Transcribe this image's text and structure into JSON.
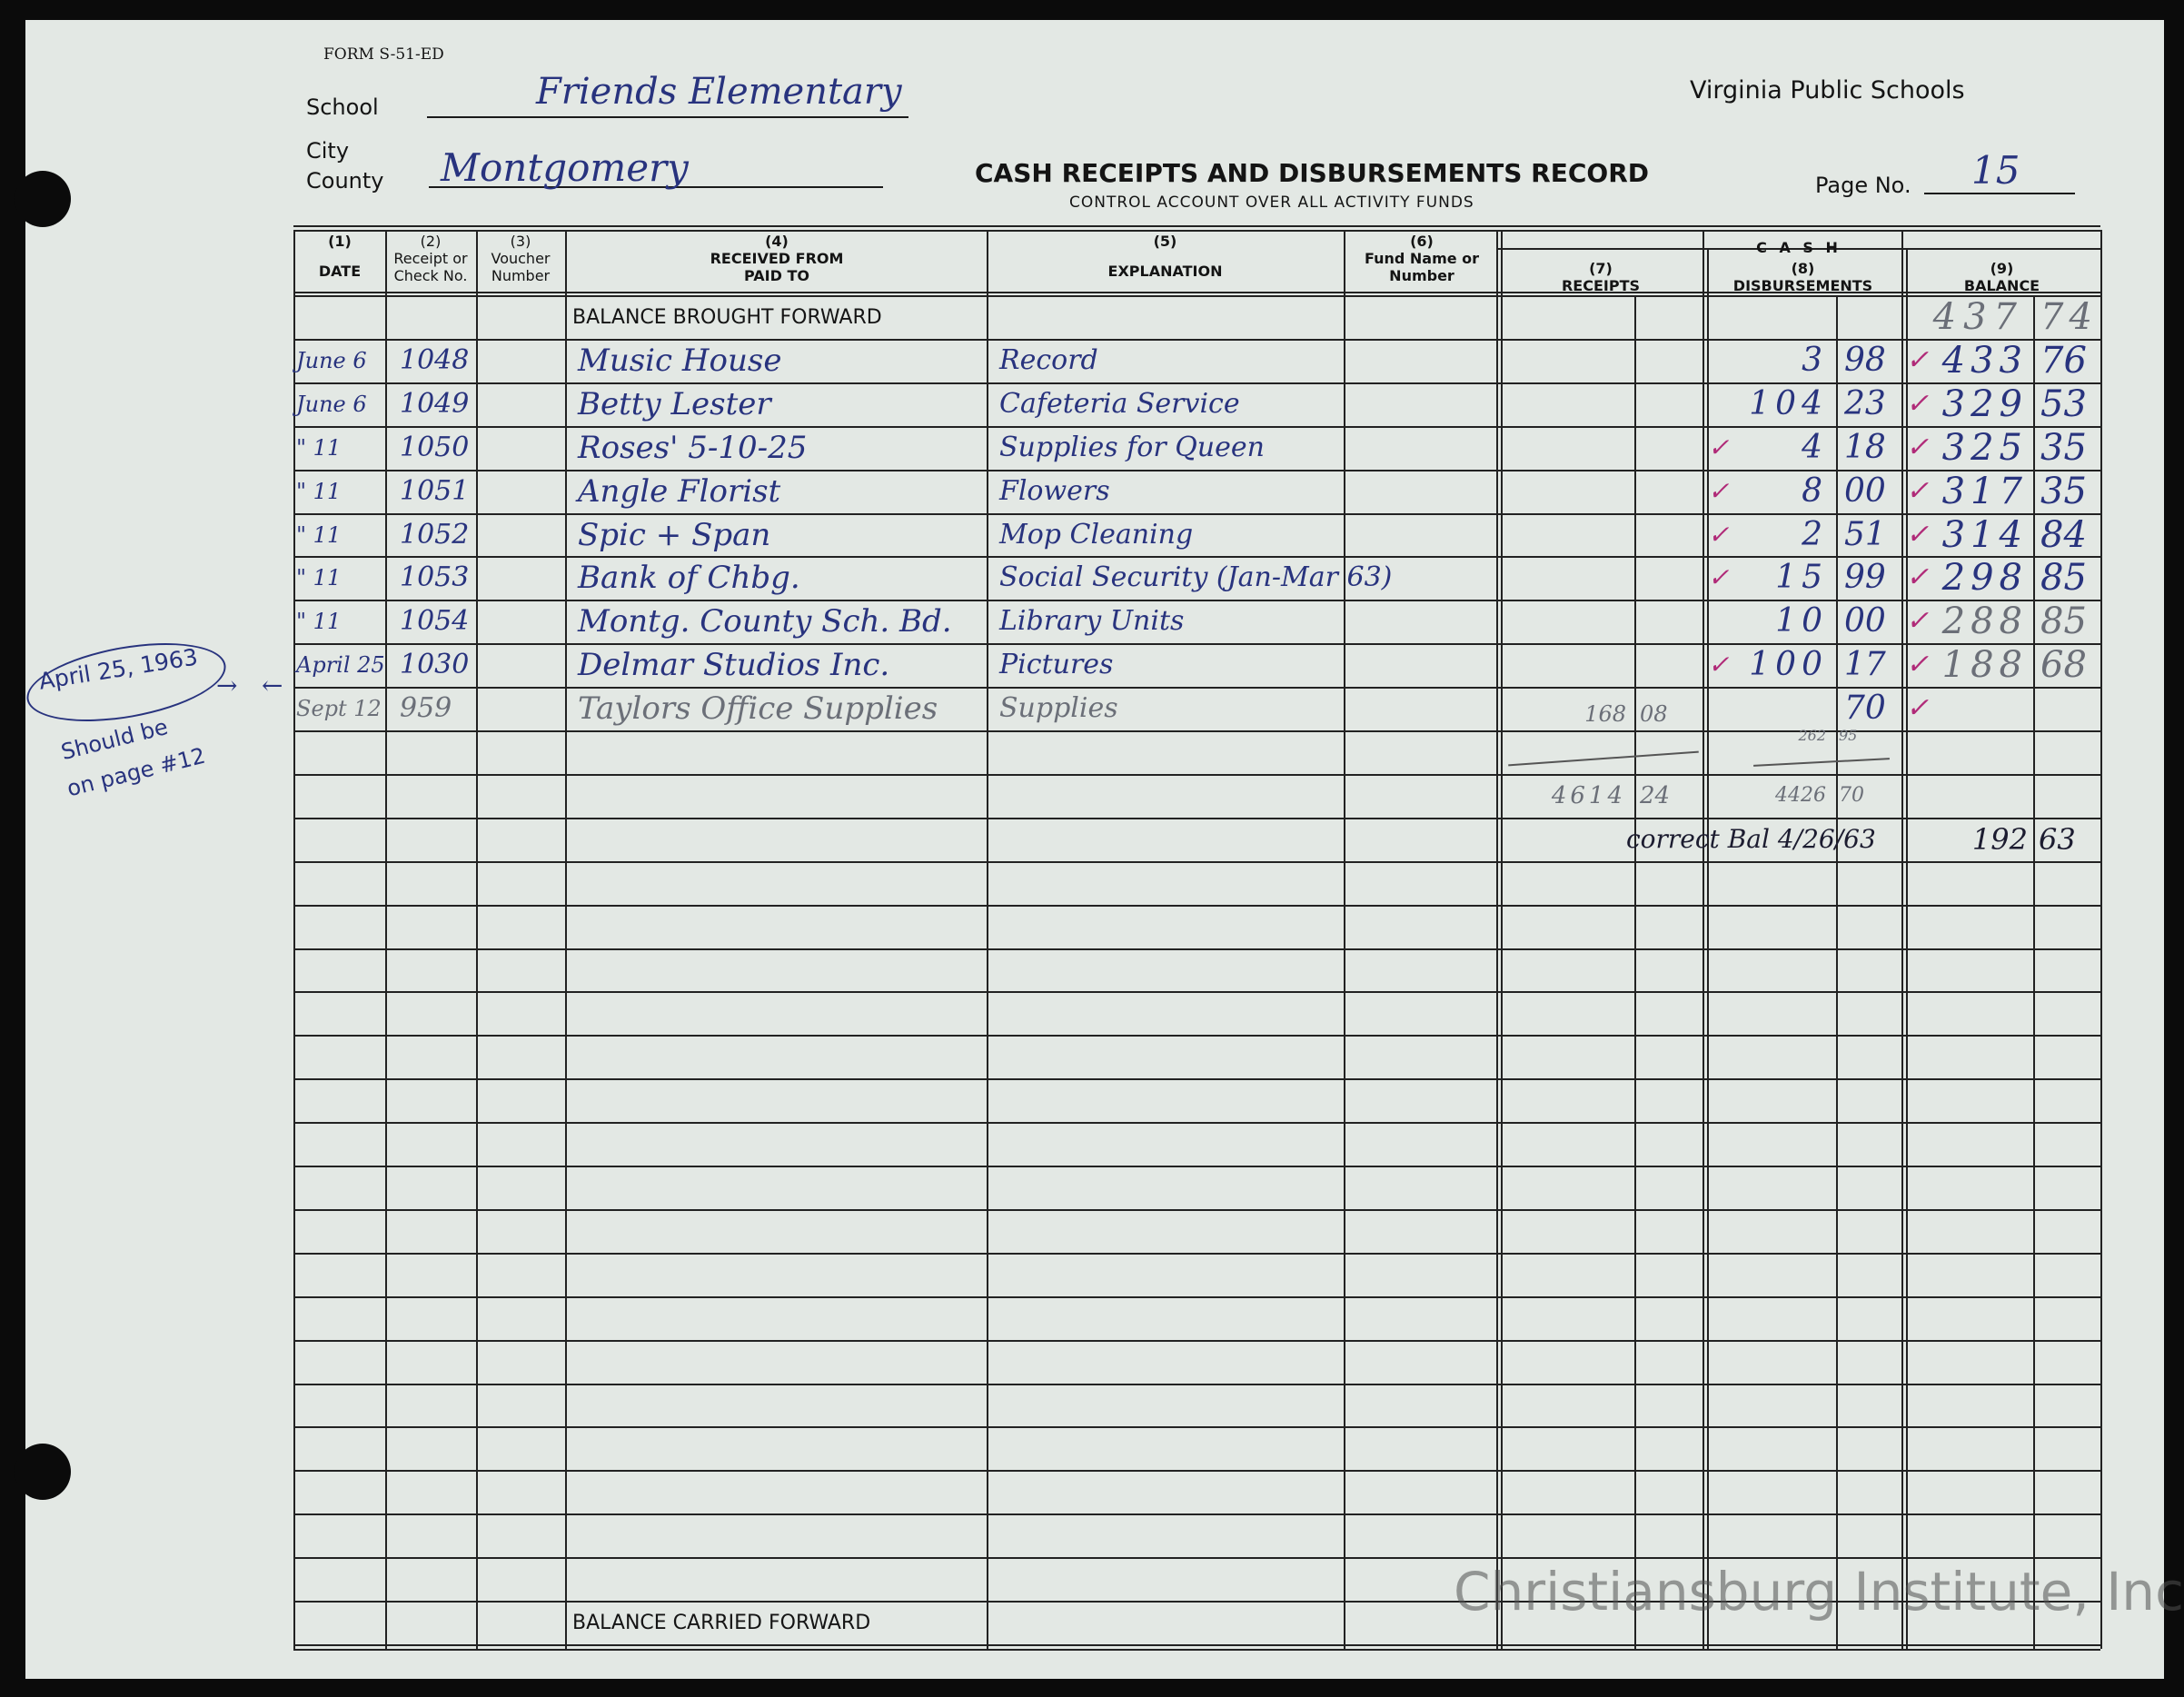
{
  "form": {
    "form_number": "FORM S-51-ED",
    "state": "Virginia Public Schools",
    "title": "CASH RECEIPTS AND DISBURSEMENTS RECORD",
    "subtitle": "CONTROL ACCOUNT OVER ALL ACTIVITY FUNDS",
    "school_label": "School",
    "school_value": "Friends Elementary",
    "city_label": "City",
    "county_label": "County",
    "county_value": "Montgomery",
    "page_label": "Page No.",
    "page_value": "15"
  },
  "columns": {
    "date": {
      "num": "(1)",
      "label": "DATE"
    },
    "check": {
      "num": "(2)",
      "label": "Receipt or Check No."
    },
    "voucher": {
      "num": "(3)",
      "label": "Voucher Number"
    },
    "party": {
      "num": "(4)",
      "label": "RECEIVED FROM PAID TO"
    },
    "explanation": {
      "num": "(5)",
      "label": "EXPLANATION"
    },
    "fund": {
      "num": "(6)",
      "label": "Fund Name or Number"
    },
    "cash": "C A S H",
    "receipts": {
      "num": "(7)",
      "label": "RECEIPTS"
    },
    "disbursements": {
      "num": "(8)",
      "label": "DISBURSEMENTS"
    },
    "balance": {
      "num": "(9)",
      "label": "BALANCE"
    }
  },
  "balance_brought_forward": {
    "label": "BALANCE BROUGHT FORWARD",
    "dollars": "437",
    "cents": "74"
  },
  "entries": [
    {
      "date": "June 6",
      "check": "1048",
      "party": "Music House",
      "explanation": "Record",
      "disb_dollars": "3",
      "disb_cents": "98",
      "bal_dollars": "433",
      "bal_cents": "76",
      "disb_tick": "",
      "bal_tick": "✓"
    },
    {
      "date": "June 6",
      "check": "1049",
      "party": "Betty Lester",
      "explanation": "Cafeteria Service",
      "disb_dollars": "104",
      "disb_cents": "23",
      "bal_dollars": "329",
      "bal_cents": "53",
      "disb_tick": "",
      "bal_tick": "✓"
    },
    {
      "date": "\" 11",
      "check": "1050",
      "party": "Roses' 5-10-25",
      "explanation": "Supplies for Queen",
      "disb_dollars": "4",
      "disb_cents": "18",
      "bal_dollars": "325",
      "bal_cents": "35",
      "disb_tick": "✓",
      "bal_tick": "✓"
    },
    {
      "date": "\" 11",
      "check": "1051",
      "party": "Angle Florist",
      "explanation": "Flowers",
      "disb_dollars": "8",
      "disb_cents": "00",
      "bal_dollars": "317",
      "bal_cents": "35",
      "disb_tick": "✓",
      "bal_tick": "✓"
    },
    {
      "date": "\" 11",
      "check": "1052",
      "party": "Spic + Span",
      "explanation": "Mop Cleaning",
      "disb_dollars": "2",
      "disb_cents": "51",
      "bal_dollars": "314",
      "bal_cents": "84",
      "disb_tick": "✓",
      "bal_tick": "✓"
    },
    {
      "date": "\" 11",
      "check": "1053",
      "party": "Bank of Chbg.",
      "explanation": "Social Security (Jan-Mar 63)",
      "disb_dollars": "15",
      "disb_cents": "99",
      "bal_dollars": "298",
      "bal_cents": "85",
      "disb_tick": "✓",
      "bal_tick": "✓"
    },
    {
      "date": "\" 11",
      "check": "1054",
      "party": "Montg. County Sch. Bd.",
      "explanation": "Library Units",
      "disb_dollars": "10",
      "disb_cents": "00",
      "bal_dollars": "288",
      "bal_cents": "85",
      "disb_tick": "",
      "bal_tick": "✓"
    },
    {
      "date": "April 25",
      "check": "1030",
      "party": "Delmar Studios Inc.",
      "explanation": "Pictures",
      "disb_dollars": "100",
      "disb_cents": "17",
      "bal_dollars": "188",
      "bal_cents": "68",
      "disb_tick": "✓",
      "bal_tick": "✓"
    },
    {
      "date": "Sept 12",
      "check": "959",
      "party": "Taylors Office Supplies",
      "explanation": "Supplies",
      "rec_dollars": "168",
      "rec_cents": "08",
      "disb_dollars": "",
      "disb_cents": "70",
      "bal_dollars": "",
      "bal_cents": "",
      "disb_tick": "",
      "bal_tick": "✓"
    }
  ],
  "subtotal": {
    "disb_dollars": "262",
    "disb_cents": "95"
  },
  "totals": {
    "rec_dollars": "4614",
    "rec_cents": "24",
    "disb_dollars": "4426",
    "disb_cents": "70"
  },
  "correct_balance": {
    "label": "correct Bal 4/26/63",
    "dollars": "192",
    "cents": "63"
  },
  "balance_carried_forward": {
    "label": "BALANCE CARRIED FORWARD"
  },
  "margin_note": {
    "date": "April 25, 1963",
    "note_line1": "Should be",
    "note_line2": "on page #12"
  },
  "watermark": "Christiansburg Institute, Inc",
  "colors": {
    "ink_blue": "#28337e",
    "ink_pink": "#b02a78",
    "paper": "#e3e8e4"
  }
}
